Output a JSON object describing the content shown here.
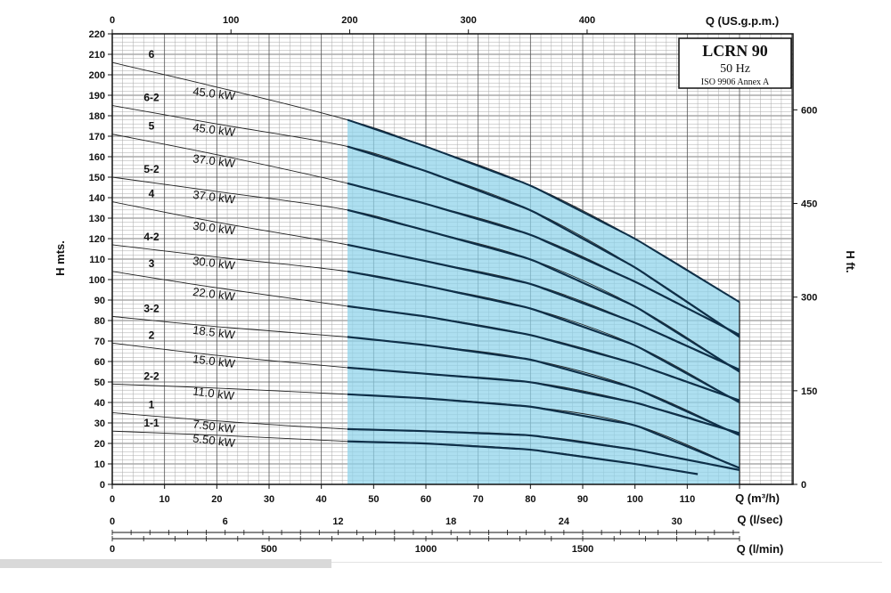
{
  "chart_data": {
    "type": "line",
    "title": "LCRN 90",
    "subtitle": "50 Hz",
    "note": "ISO 9906 Annex A",
    "ylabel": "H mts.",
    "y2label": "H ft.",
    "ylim": [
      0,
      220
    ],
    "y_ticks": [
      "0",
      "10",
      "20",
      "30",
      "40",
      "50",
      "60",
      "70",
      "80",
      "90",
      "100",
      "110",
      "120",
      "130",
      "140",
      "150",
      "160",
      "170",
      "180",
      "190",
      "200",
      "210",
      "220"
    ],
    "y2_ticks": [
      "0",
      "150",
      "300",
      "450",
      "600"
    ],
    "x_m3h": {
      "label": "Q (m³/h)",
      "range": [
        0,
        120
      ],
      "ticks": [
        "0",
        "10",
        "20",
        "30",
        "40",
        "50",
        "60",
        "70",
        "80",
        "90",
        "100",
        "110",
        "Q (m³/h)"
      ]
    },
    "x_usgpm": {
      "label": "Q (US.g.p.m.)",
      "ticks": [
        "0",
        "100",
        "200",
        "300",
        "400"
      ]
    },
    "x_lsec": {
      "label": "Q (l/sec)",
      "ticks": [
        "0",
        "6",
        "12",
        "18",
        "24",
        "30"
      ]
    },
    "x_lmin": {
      "label": "Q (l/min)",
      "ticks": [
        "0",
        "500",
        "1000",
        "1500"
      ]
    },
    "operating_range_m3h": [
      45,
      120
    ],
    "operating_range_color": "#8dd3ea",
    "series": [
      {
        "name": "6",
        "power": "45.0 kW",
        "x": [
          0,
          20,
          45,
          60,
          80,
          100,
          120
        ],
        "y": [
          206,
          194,
          178,
          165,
          146,
          120,
          89
        ]
      },
      {
        "name": "6-2",
        "power": "45.0 kW",
        "x": [
          0,
          20,
          45,
          60,
          80,
          100,
          120
        ],
        "y": [
          185,
          176,
          165,
          153,
          134,
          106,
          72
        ]
      },
      {
        "name": "5",
        "power": "37.0 kW",
        "x": [
          0,
          20,
          45,
          60,
          80,
          100,
          120
        ],
        "y": [
          171,
          161,
          147,
          137,
          122,
          99,
          73
        ]
      },
      {
        "name": "5-2",
        "power": "37.0 kW",
        "x": [
          0,
          20,
          45,
          60,
          80,
          100,
          120
        ],
        "y": [
          150,
          143,
          134,
          124,
          110,
          87,
          55
        ]
      },
      {
        "name": "4",
        "power": "30.0 kW",
        "x": [
          0,
          20,
          45,
          60,
          80,
          100,
          120
        ],
        "y": [
          138,
          128,
          117,
          109,
          98,
          79,
          56
        ]
      },
      {
        "name": "4-2",
        "power": "30.0 kW",
        "x": [
          0,
          20,
          45,
          60,
          80,
          100,
          120
        ],
        "y": [
          117,
          111,
          104,
          97,
          86,
          68,
          40
        ]
      },
      {
        "name": "3",
        "power": "22.0 kW",
        "x": [
          0,
          20,
          45,
          60,
          80,
          100,
          120
        ],
        "y": [
          104,
          96,
          87,
          82,
          73,
          59,
          41
        ]
      },
      {
        "name": "3-2",
        "power": "18.5 kW",
        "x": [
          0,
          20,
          45,
          60,
          80,
          100,
          120
        ],
        "y": [
          82,
          77,
          72,
          68,
          61,
          47,
          24
        ]
      },
      {
        "name": "2",
        "power": "15.0 kW",
        "x": [
          0,
          20,
          45,
          60,
          80,
          100,
          120
        ],
        "y": [
          69,
          63,
          57,
          54,
          50,
          40,
          25
        ]
      },
      {
        "name": "2-2",
        "power": "11.0 kW",
        "x": [
          0,
          20,
          45,
          60,
          80,
          100,
          120
        ],
        "y": [
          49,
          47,
          44,
          42,
          38,
          29,
          8
        ]
      },
      {
        "name": "1",
        "power": "7.50 kW",
        "x": [
          0,
          20,
          45,
          60,
          80,
          100,
          120
        ],
        "y": [
          35,
          31,
          27,
          26,
          24,
          17,
          7
        ]
      },
      {
        "name": "1-1",
        "power": "5.50 kW",
        "x": [
          0,
          20,
          45,
          60,
          80,
          100,
          112
        ],
        "y": [
          26,
          24,
          21,
          20,
          17,
          10,
          5
        ]
      }
    ]
  }
}
